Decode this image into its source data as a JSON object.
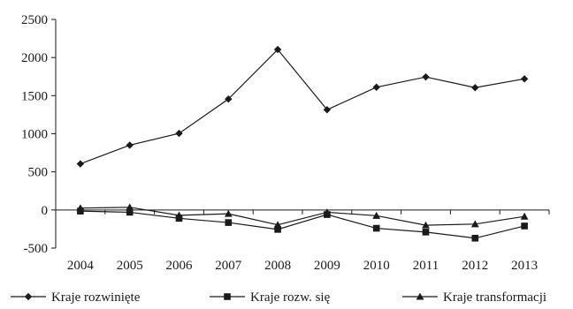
{
  "chart_data": {
    "type": "line",
    "title": "",
    "xlabel": "",
    "ylabel": "",
    "categories": [
      "2004",
      "2005",
      "2006",
      "2007",
      "2008",
      "2009",
      "2010",
      "2011",
      "2012",
      "2013"
    ],
    "ylim": [
      -500,
      2500
    ],
    "yticks": [
      -500,
      0,
      500,
      1000,
      1500,
      2000,
      2500
    ],
    "grid": false,
    "legend_position": "bottom",
    "series": [
      {
        "name": "Kraje rozwinięte",
        "marker": "diamond",
        "values": [
          605,
          850,
          1005,
          1455,
          2105,
          1315,
          1610,
          1745,
          1605,
          1720
        ]
      },
      {
        "name": "Kraje rozw. się",
        "marker": "square",
        "values": [
          -15,
          -30,
          -110,
          -165,
          -255,
          -60,
          -240,
          -290,
          -370,
          -210
        ]
      },
      {
        "name": "Kraje transformacji",
        "marker": "triangle",
        "values": [
          25,
          35,
          -70,
          -50,
          -195,
          -30,
          -75,
          -200,
          -185,
          -85
        ]
      }
    ]
  }
}
